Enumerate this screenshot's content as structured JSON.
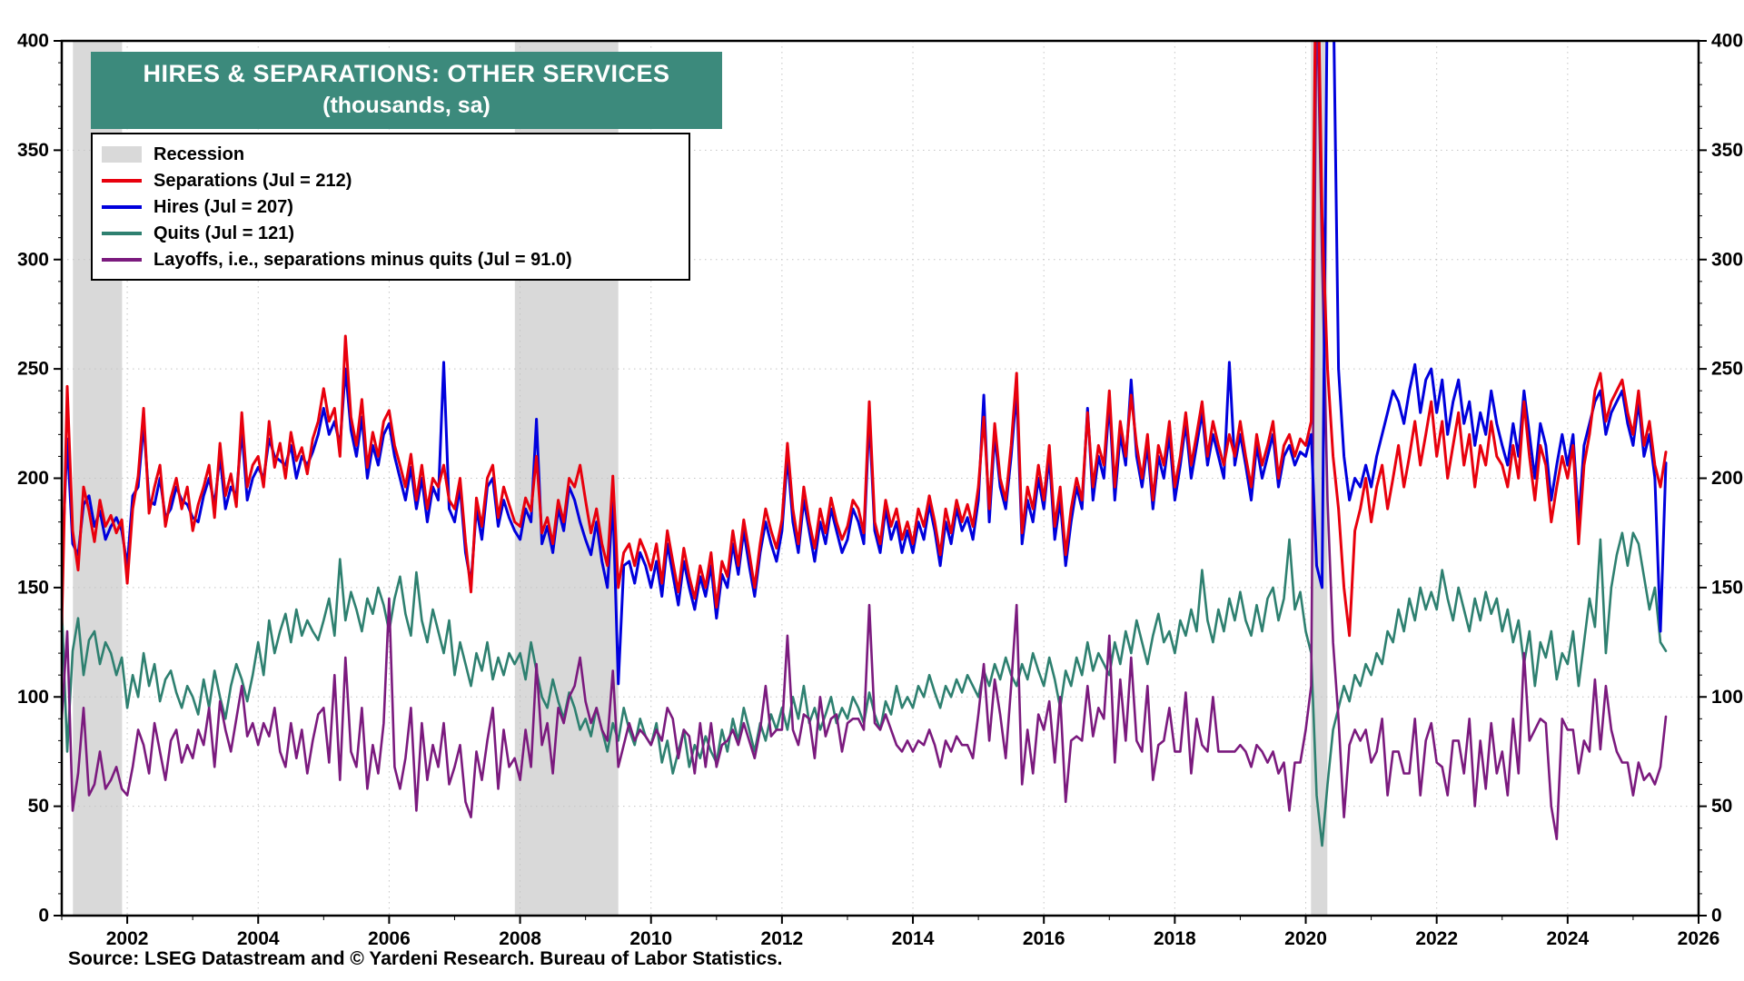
{
  "source": "Source: LSEG Datastream and © Yardeni Research. Bureau of Labor Statistics.",
  "chart_data": {
    "type": "line",
    "title": "HIRES & SEPARATIONS: OTHER SERVICES",
    "subtitle": "(thousands, sa)",
    "title_bg_color": "#3c8a7c",
    "recession_color": "#d9d9d9",
    "grid": "dotted",
    "y_min": 0,
    "y_max": 400,
    "y_tick_step": 50,
    "x_min": 2001,
    "x_max": 2026,
    "x_tick_labels": [
      2002,
      2004,
      2006,
      2008,
      2010,
      2012,
      2014,
      2016,
      2018,
      2020,
      2022,
      2024,
      2026
    ],
    "x_start": 2001.0,
    "x_step_months": 1,
    "recessions": [
      [
        2001.17,
        2001.92
      ],
      [
        2007.92,
        2009.5
      ],
      [
        2020.08,
        2020.33
      ]
    ],
    "legend": [
      {
        "key": "recession",
        "swatch": "box",
        "color": "#d9d9d9",
        "label": "Recession"
      },
      {
        "key": "separations",
        "swatch": "line",
        "color": "#e8000d",
        "label": "Separations (Jul = 212)"
      },
      {
        "key": "hires",
        "swatch": "line",
        "color": "#0000dd",
        "label": "Hires (Jul = 207)"
      },
      {
        "key": "quits",
        "swatch": "line",
        "color": "#2e8070",
        "label": "Quits (Jul = 121)"
      },
      {
        "key": "layoffs",
        "swatch": "line",
        "color": "#7b1a7e",
        "label": "Layoffs, i.e., separations minus quits (Jul = 91.0)"
      }
    ],
    "series": [
      {
        "name": "Quits",
        "color": "#2e8070",
        "width": 2.6,
        "values": [
          141,
          75,
          121,
          136,
          110,
          126,
          130,
          115,
          125,
          120,
          110,
          118,
          95,
          110,
          100,
          120,
          105,
          115,
          98,
          108,
          112,
          102,
          95,
          105,
          100,
          92,
          108,
          95,
          112,
          100,
          90,
          105,
          115,
          108,
          98,
          110,
          125,
          110,
          135,
          120,
          130,
          138,
          125,
          140,
          128,
          135,
          130,
          126,
          135,
          145,
          128,
          163,
          135,
          148,
          140,
          130,
          145,
          138,
          150,
          142,
          130,
          145,
          155,
          138,
          128,
          157,
          135,
          125,
          140,
          130,
          120,
          135,
          110,
          125,
          115,
          105,
          120,
          112,
          125,
          108,
          118,
          110,
          120,
          115,
          120,
          108,
          125,
          112,
          100,
          95,
          108,
          98,
          90,
          102,
          95,
          85,
          90,
          82,
          95,
          85,
          75,
          88,
          80,
          95,
          85,
          78,
          90,
          82,
          78,
          88,
          70,
          80,
          65,
          75,
          85,
          68,
          78,
          72,
          82,
          75,
          70,
          85,
          75,
          90,
          80,
          95,
          85,
          75,
          88,
          80,
          92,
          85,
          95,
          85,
          100,
          90,
          105,
          88,
          95,
          85,
          92,
          100,
          88,
          95,
          90,
          100,
          95,
          88,
          102,
          92,
          85,
          98,
          92,
          105,
          95,
          100,
          95,
          105,
          100,
          110,
          102,
          95,
          105,
          100,
          108,
          102,
          110,
          105,
          100,
          112,
          105,
          115,
          108,
          118,
          110,
          105,
          115,
          108,
          120,
          112,
          105,
          118,
          108,
          95,
          112,
          105,
          118,
          110,
          125,
          112,
          120,
          115,
          110,
          125,
          115,
          130,
          120,
          135,
          125,
          115,
          128,
          138,
          125,
          130,
          120,
          135,
          128,
          140,
          130,
          158,
          135,
          125,
          140,
          130,
          145,
          135,
          148,
          135,
          128,
          142,
          130,
          145,
          150,
          135,
          145,
          172,
          140,
          148,
          130,
          120,
          55,
          32,
          60,
          85,
          95,
          105,
          98,
          110,
          105,
          115,
          110,
          120,
          115,
          130,
          125,
          140,
          130,
          145,
          135,
          150,
          140,
          148,
          140,
          158,
          145,
          135,
          150,
          140,
          130,
          145,
          135,
          148,
          138,
          145,
          130,
          140,
          125,
          135,
          115,
          130,
          105,
          125,
          118,
          130,
          108,
          120,
          115,
          130,
          105,
          125,
          145,
          132,
          172,
          120,
          150,
          165,
          175,
          160,
          175,
          170,
          155,
          140,
          150,
          125,
          121
        ]
      },
      {
        "name": "Layoffs",
        "color": "#7b1a7e",
        "width": 2.6,
        "values": [
          90,
          130,
          48,
          65,
          95,
          55,
          60,
          75,
          58,
          62,
          68,
          58,
          55,
          68,
          85,
          78,
          65,
          88,
          75,
          62,
          80,
          85,
          70,
          78,
          72,
          85,
          78,
          95,
          68,
          98,
          85,
          75,
          90,
          105,
          82,
          88,
          78,
          88,
          82,
          95,
          75,
          68,
          88,
          72,
          85,
          65,
          80,
          92,
          95,
          70,
          110,
          62,
          118,
          75,
          68,
          95,
          58,
          78,
          65,
          88,
          145,
          68,
          58,
          72,
          95,
          48,
          88,
          62,
          78,
          68,
          88,
          60,
          68,
          78,
          52,
          45,
          75,
          62,
          80,
          95,
          58,
          85,
          68,
          72,
          62,
          85,
          68,
          115,
          78,
          88,
          65,
          95,
          88,
          100,
          105,
          118,
          98,
          88,
          95,
          85,
          80,
          112,
          68,
          78,
          88,
          80,
          85,
          82,
          78,
          85,
          80,
          95,
          90,
          72,
          85,
          82,
          65,
          88,
          68,
          88,
          68,
          78,
          80,
          85,
          78,
          88,
          80,
          72,
          85,
          105,
          82,
          85,
          85,
          128,
          85,
          78,
          92,
          90,
          72,
          100,
          82,
          90,
          92,
          75,
          88,
          90,
          90,
          85,
          142,
          88,
          85,
          92,
          85,
          78,
          75,
          80,
          75,
          80,
          78,
          85,
          78,
          68,
          80,
          75,
          82,
          78,
          78,
          72,
          92,
          115,
          80,
          108,
          92,
          72,
          105,
          142,
          60,
          85,
          65,
          92,
          85,
          98,
          70,
          100,
          52,
          80,
          82,
          80,
          105,
          82,
          95,
          90,
          128,
          70,
          108,
          80,
          118,
          80,
          75,
          105,
          62,
          78,
          80,
          95,
          75,
          75,
          102,
          65,
          90,
          78,
          75,
          100,
          75,
          75,
          75,
          75,
          78,
          75,
          68,
          78,
          75,
          70,
          75,
          65,
          70,
          48,
          70,
          70,
          85,
          105,
          430,
          300,
          190,
          125,
          90,
          45,
          78,
          85,
          80,
          85,
          70,
          75,
          90,
          55,
          75,
          75,
          65,
          65,
          90,
          55,
          80,
          88,
          70,
          68,
          55,
          80,
          80,
          65,
          90,
          50,
          80,
          58,
          88,
          65,
          75,
          55,
          90,
          65,
          120,
          80,
          85,
          90,
          88,
          50,
          35,
          90,
          85,
          85,
          65,
          80,
          75,
          108,
          76,
          105,
          85,
          75,
          70,
          70,
          55,
          70,
          62,
          65,
          60,
          68,
          91
        ]
      },
      {
        "name": "Hires",
        "color": "#0000dd",
        "width": 3,
        "values": [
          158,
          218,
          170,
          165,
          188,
          192,
          178,
          185,
          172,
          178,
          182,
          176,
          160,
          192,
          196,
          225,
          190,
          188,
          200,
          182,
          186,
          196,
          190,
          188,
          182,
          180,
          192,
          200,
          188,
          210,
          186,
          196,
          192,
          222,
          190,
          200,
          205,
          200,
          218,
          210,
          208,
          206,
          215,
          200,
          210,
          206,
          212,
          220,
          232,
          220,
          226,
          215,
          250,
          222,
          210,
          228,
          200,
          215,
          206,
          220,
          225,
          210,
          200,
          190,
          205,
          186,
          200,
          180,
          196,
          190,
          253,
          186,
          180,
          196,
          166,
          152,
          186,
          172,
          196,
          200,
          178,
          190,
          182,
          176,
          172,
          186,
          180,
          227,
          170,
          178,
          166,
          186,
          176,
          196,
          190,
          180,
          172,
          165,
          180,
          162,
          150,
          190,
          106,
          160,
          162,
          152,
          166,
          160,
          150,
          162,
          146,
          170,
          156,
          142,
          162,
          150,
          140,
          155,
          146,
          160,
          136,
          156,
          150,
          170,
          156,
          176,
          160,
          146,
          166,
          180,
          170,
          162,
          176,
          210,
          180,
          166,
          190,
          176,
          162,
          180,
          170,
          186,
          176,
          166,
          172,
          186,
          180,
          170,
          228,
          176,
          166,
          186,
          172,
          180,
          166,
          176,
          166,
          180,
          172,
          188,
          176,
          160,
          180,
          170,
          186,
          176,
          182,
          172,
          190,
          238,
          180,
          220,
          196,
          186,
          210,
          240,
          170,
          190,
          180,
          200,
          186,
          210,
          172,
          190,
          160,
          180,
          196,
          186,
          232,
          190,
          210,
          200,
          235,
          190,
          220,
          206,
          245,
          210,
          196,
          215,
          186,
          210,
          200,
          220,
          190,
          206,
          225,
          200,
          215,
          230,
          206,
          220,
          210,
          200,
          253,
          206,
          220,
          206,
          190,
          215,
          200,
          210,
          220,
          196,
          210,
          215,
          206,
          212,
          210,
          220,
          160,
          150,
          435,
          430,
          250,
          210,
          190,
          200,
          196,
          206,
          196,
          210,
          220,
          230,
          240,
          235,
          225,
          240,
          252,
          230,
          245,
          250,
          230,
          245,
          220,
          235,
          245,
          225,
          235,
          215,
          230,
          220,
          240,
          225,
          215,
          206,
          225,
          210,
          240,
          220,
          200,
          225,
          215,
          190,
          206,
          220,
          206,
          220,
          180,
          215,
          225,
          235,
          240,
          220,
          230,
          235,
          240,
          225,
          215,
          235,
          210,
          220,
          200,
          130,
          207
        ]
      },
      {
        "name": "Separations",
        "color": "#e8000d",
        "width": 3,
        "values": [
          133,
          242,
          176,
          158,
          196,
          185,
          171,
          190,
          178,
          183,
          175,
          181,
          152,
          186,
          201,
          232,
          184,
          196,
          206,
          178,
          191,
          200,
          186,
          196,
          176,
          188,
          196,
          206,
          182,
          216,
          192,
          202,
          187,
          230,
          196,
          206,
          210,
          196,
          226,
          205,
          216,
          200,
          221,
          208,
          214,
          202,
          218,
          226,
          241,
          226,
          232,
          210,
          265,
          228,
          215,
          236,
          205,
          221,
          210,
          226,
          231,
          215,
          206,
          196,
          211,
          190,
          206,
          186,
          200,
          196,
          206,
          190,
          186,
          200,
          171,
          148,
          191,
          178,
          200,
          206,
          182,
          196,
          188,
          180,
          178,
          191,
          185,
          210,
          175,
          182,
          170,
          190,
          180,
          200,
          196,
          206,
          190,
          175,
          186,
          170,
          160,
          201,
          150,
          166,
          170,
          160,
          172,
          166,
          158,
          170,
          152,
          176,
          162,
          148,
          168,
          155,
          145,
          160,
          150,
          166,
          141,
          162,
          155,
          176,
          160,
          181,
          166,
          150,
          170,
          186,
          176,
          168,
          181,
          216,
          186,
          170,
          196,
          180,
          168,
          186,
          175,
          191,
          180,
          172,
          178,
          190,
          186,
          175,
          235,
          180,
          170,
          190,
          178,
          186,
          172,
          180,
          170,
          186,
          178,
          192,
          180,
          165,
          186,
          175,
          190,
          180,
          188,
          178,
          196,
          228,
          186,
          225,
          200,
          190,
          215,
          248,
          175,
          196,
          186,
          206,
          190,
          215,
          178,
          196,
          165,
          186,
          200,
          190,
          230,
          196,
          215,
          206,
          240,
          196,
          226,
          210,
          238,
          215,
          200,
          220,
          190,
          215,
          206,
          226,
          196,
          210,
          230,
          206,
          220,
          235,
          210,
          226,
          215,
          206,
          220,
          210,
          226,
          210,
          196,
          220,
          206,
          215,
          226,
          200,
          215,
          220,
          210,
          218,
          215,
          226,
          470,
          320,
          250,
          210,
          186,
          150,
          128,
          176,
          186,
          200,
          180,
          196,
          206,
          186,
          200,
          215,
          196,
          210,
          226,
          206,
          220,
          235,
          210,
          226,
          200,
          215,
          230,
          206,
          220,
          196,
          215,
          206,
          226,
          210,
          206,
          196,
          215,
          200,
          235,
          210,
          190,
          215,
          206,
          180,
          196,
          210,
          200,
          215,
          170,
          206,
          220,
          240,
          248,
          226,
          235,
          240,
          245,
          230,
          220,
          240,
          215,
          226,
          206,
          196,
          212
        ]
      }
    ]
  }
}
